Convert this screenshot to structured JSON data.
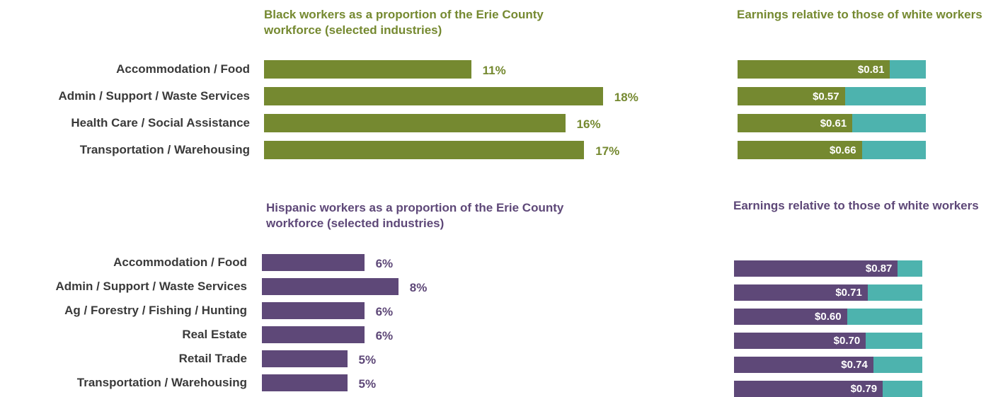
{
  "colors": {
    "black_series": "#758930",
    "hispanic_series": "#5e4878",
    "reference": "#4db3ae"
  },
  "chart_data": [
    {
      "type": "bar",
      "orientation": "horizontal",
      "title": "Black workers as a proportion of the Erie County workforce (selected industries)",
      "categories": [
        "Accommodation / Food",
        "Admin / Support / Waste Services",
        "Health Care / Social Assistance",
        "Transportation / Warehousing"
      ],
      "values": [
        11,
        18,
        16,
        17
      ],
      "value_labels": [
        "11%",
        "18%",
        "16%",
        "17%"
      ],
      "unit": "%",
      "xlim": [
        0,
        20
      ]
    },
    {
      "type": "bar",
      "orientation": "horizontal",
      "stacked": true,
      "title": "Earnings relative to those of white workers",
      "categories": [
        "Accommodation / Food",
        "Admin / Support / Waste Services",
        "Health Care / Social Assistance",
        "Transportation / Warehousing"
      ],
      "values": [
        0.81,
        0.57,
        0.61,
        0.66
      ],
      "value_labels": [
        "$0.81",
        "$0.57",
        "$0.61",
        "$0.66"
      ],
      "xlim": [
        0,
        1
      ]
    },
    {
      "type": "bar",
      "orientation": "horizontal",
      "title": "Hispanic workers as a proportion of the Erie County workforce (selected industries)",
      "categories": [
        "Accommodation / Food",
        "Admin / Support / Waste Services",
        "Ag / Forestry / Fishing / Hunting",
        "Real Estate",
        "Retail Trade",
        "Transportation / Warehousing"
      ],
      "values": [
        6,
        8,
        6,
        6,
        5,
        5
      ],
      "value_labels": [
        "6%",
        "8%",
        "6%",
        "6%",
        "5%",
        "5%"
      ],
      "unit": "%",
      "xlim": [
        0,
        20
      ]
    },
    {
      "type": "bar",
      "orientation": "horizontal",
      "stacked": true,
      "title": "Earnings relative to those of white workers",
      "categories": [
        "Accommodation / Food",
        "Admin / Support / Waste Services",
        "Ag / Forestry / Fishing / Hunting",
        "Real Estate",
        "Retail Trade",
        "Transportation / Warehousing"
      ],
      "values": [
        0.87,
        0.71,
        0.6,
        0.7,
        0.74,
        0.79
      ],
      "value_labels": [
        "$0.87",
        "$0.71",
        "$0.60",
        "$0.70",
        "$0.74",
        "$0.79"
      ],
      "xlim": [
        0,
        1
      ]
    }
  ]
}
